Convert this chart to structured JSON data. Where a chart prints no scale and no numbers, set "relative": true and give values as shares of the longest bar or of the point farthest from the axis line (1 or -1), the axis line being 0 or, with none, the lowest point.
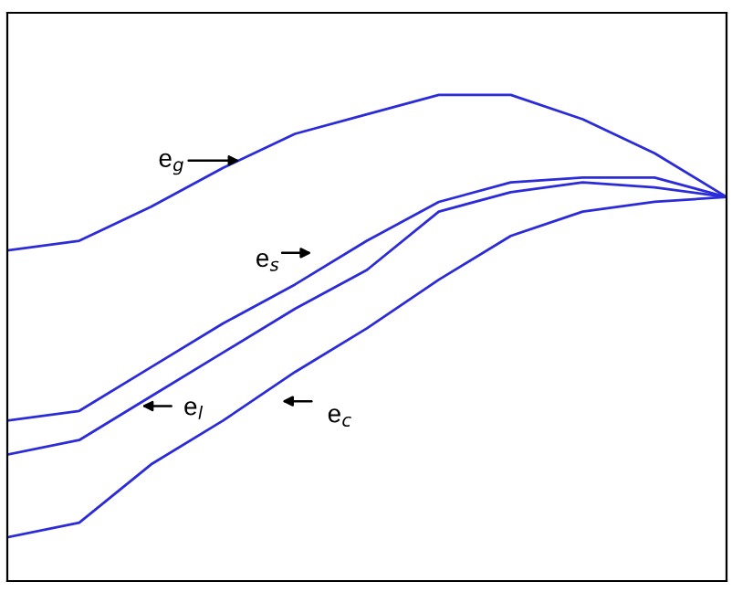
{
  "chart_data": {
    "type": "line",
    "relative": true,
    "categories": [
      null,
      null,
      null,
      null,
      null,
      null,
      null,
      null,
      null,
      null,
      null
    ],
    "series": [
      {
        "color": "#2b2bd9",
        "values": [
          0.68,
          0.7,
          0.77,
          0.85,
          0.92,
          0.96,
          1.0,
          1.0,
          0.95,
          0.88,
          0.79
        ]
      },
      {
        "color": "#2b2bd9",
        "values": [
          0.33,
          0.35,
          0.44,
          0.53,
          0.61,
          0.7,
          0.78,
          0.82,
          0.83,
          0.83,
          0.79
        ]
      },
      {
        "color": "#2b2bd9",
        "values": [
          0.26,
          0.29,
          0.38,
          0.47,
          0.56,
          0.64,
          0.76,
          0.8,
          0.82,
          0.81,
          0.79
        ]
      },
      {
        "color": "#2b2bd9",
        "values": [
          0.09,
          0.12,
          0.24,
          0.33,
          0.43,
          0.52,
          0.62,
          0.71,
          0.76,
          0.78,
          0.79
        ]
      }
    ],
    "annotations": [
      "e$_{g}$",
      "e$_{s}$",
      "e$_{l}$",
      "e$_{c}$"
    ],
    "marker": "none",
    "line_style": "solid",
    "grid": false,
    "legend": false
  }
}
